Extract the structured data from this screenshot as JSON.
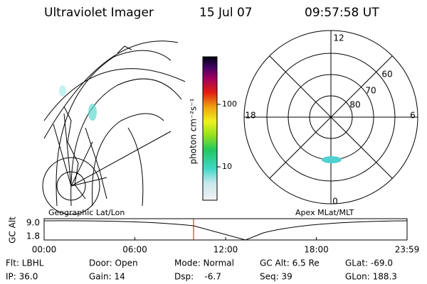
{
  "header": {
    "instrument": "Ultraviolet Imager",
    "date": "15 Jul 07",
    "time": "09:57:58 UT"
  },
  "colorbar": {
    "unit_label": "photon cm⁻²s⁻¹",
    "ticks": [
      "100",
      "10"
    ]
  },
  "polar": {
    "mlt_labels": {
      "top": "12",
      "bottom": "0",
      "left": "18",
      "right": "6"
    },
    "lat_labels": [
      "60",
      "70",
      "80"
    ]
  },
  "panels": {
    "left": "Geographic Lat/Lon",
    "right": "Apex MLat/MLT"
  },
  "gc_alt": {
    "axis_label": "GC Alt",
    "yticks": [
      "9.0",
      "1.8"
    ],
    "xticks": [
      "00:00",
      "06:00",
      "12:00",
      "18:00",
      "23:59"
    ]
  },
  "info": {
    "rows": [
      [
        "Flt: LBHL",
        "Door: Open",
        "Mode: Normal",
        "GC Alt: 6.5 Re",
        "GLat: -69.0"
      ],
      [
        "IP: 36.0",
        "Gain: 14",
        "Dsp:    -6.7",
        "Seq: 39",
        "GLon: 188.3"
      ]
    ]
  }
}
